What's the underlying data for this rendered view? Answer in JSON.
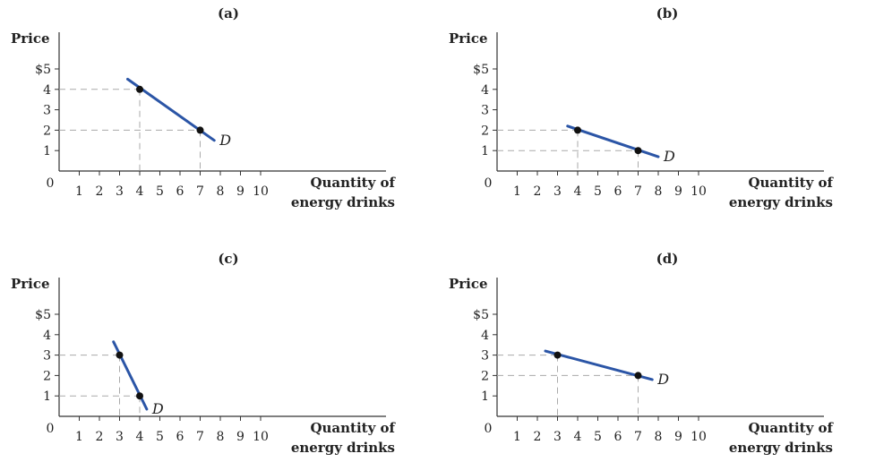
{
  "chart_data": [
    {
      "type": "line",
      "panel_label": "(a)",
      "ylabel": "Price",
      "xlabel_line1": "Quantity of",
      "xlabel_line2": "energy drinks",
      "origin_label": "0",
      "xticks": [
        "1",
        "2",
        "3",
        "4",
        "5",
        "6",
        "7",
        "8",
        "9",
        "10"
      ],
      "yticks": [
        "1",
        "2",
        "3",
        "4",
        "$5"
      ],
      "xlim": [
        0,
        10
      ],
      "ylim": [
        0,
        5
      ],
      "series": [
        {
          "label": "D",
          "x": [
            3.4,
            7.7
          ],
          "y": [
            4.5,
            1.5
          ],
          "color": "#2b55a6"
        }
      ],
      "points": [
        {
          "x": 4,
          "y": 4
        },
        {
          "x": 7,
          "y": 2
        }
      ]
    },
    {
      "type": "line",
      "panel_label": "(b)",
      "ylabel": "Price",
      "xlabel_line1": "Quantity of",
      "xlabel_line2": "energy drinks",
      "origin_label": "0",
      "xticks": [
        "1",
        "2",
        "3",
        "4",
        "5",
        "6",
        "7",
        "8",
        "9",
        "10"
      ],
      "yticks": [
        "1",
        "2",
        "3",
        "4",
        "$5"
      ],
      "xlim": [
        0,
        10
      ],
      "ylim": [
        0,
        5
      ],
      "series": [
        {
          "label": "D",
          "x": [
            3.5,
            8.0
          ],
          "y": [
            2.2,
            0.7
          ],
          "color": "#2b55a6"
        }
      ],
      "points": [
        {
          "x": 4,
          "y": 2
        },
        {
          "x": 7,
          "y": 1
        }
      ]
    },
    {
      "type": "line",
      "panel_label": "(c)",
      "ylabel": "Price",
      "xlabel_line1": "Quantity of",
      "xlabel_line2": "energy drinks",
      "origin_label": "0",
      "xticks": [
        "1",
        "2",
        "3",
        "4",
        "5",
        "6",
        "7",
        "8",
        "9",
        "10"
      ],
      "yticks": [
        "1",
        "2",
        "3",
        "4",
        "$5"
      ],
      "xlim": [
        0,
        10
      ],
      "ylim": [
        0,
        5
      ],
      "series": [
        {
          "label": "D",
          "x": [
            2.7,
            4.35
          ],
          "y": [
            3.65,
            0.35
          ],
          "color": "#2b55a6"
        }
      ],
      "points": [
        {
          "x": 3,
          "y": 3
        },
        {
          "x": 4,
          "y": 1
        }
      ]
    },
    {
      "type": "line",
      "panel_label": "(d)",
      "ylabel": "Price",
      "xlabel_line1": "Quantity of",
      "xlabel_line2": "energy drinks",
      "origin_label": "0",
      "xticks": [
        "1",
        "2",
        "3",
        "4",
        "5",
        "6",
        "7",
        "8",
        "9",
        "10"
      ],
      "yticks": [
        "1",
        "2",
        "3",
        "4",
        "$5"
      ],
      "xlim": [
        0,
        10
      ],
      "ylim": [
        0,
        5
      ],
      "series": [
        {
          "label": "D",
          "x": [
            2.4,
            7.7
          ],
          "y": [
            3.2,
            1.8
          ],
          "color": "#2b55a6"
        }
      ],
      "points": [
        {
          "x": 3,
          "y": 3
        },
        {
          "x": 7,
          "y": 2
        }
      ]
    }
  ]
}
